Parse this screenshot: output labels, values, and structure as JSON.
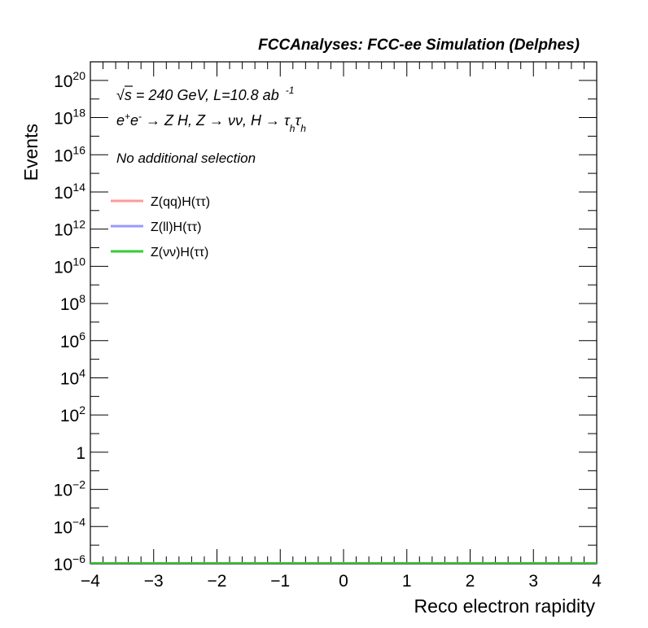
{
  "chart_data": {
    "type": "line",
    "title": "FCCAnalyses: FCC-ee Simulation (Delphes)",
    "xlabel": "Reco electron rapidity",
    "ylabel": "Events",
    "xlim": [
      -4,
      4
    ],
    "ylim_log10": [
      -6,
      21
    ],
    "yscale": "log",
    "x_ticks": [
      "−4",
      "−3",
      "−2",
      "−1",
      "0",
      "1",
      "2",
      "3",
      "4"
    ],
    "y_ticks": [
      {
        "exp": -6,
        "base": "10",
        "sup": "−6"
      },
      {
        "exp": -4,
        "base": "10",
        "sup": "−4"
      },
      {
        "exp": -2,
        "base": "10",
        "sup": "−2"
      },
      {
        "exp": 0,
        "base": "1",
        "sup": ""
      },
      {
        "exp": 2,
        "base": "10",
        "sup": "2"
      },
      {
        "exp": 4,
        "base": "10",
        "sup": "4"
      },
      {
        "exp": 6,
        "base": "10",
        "sup": "6"
      },
      {
        "exp": 8,
        "base": "10",
        "sup": "8"
      },
      {
        "exp": 10,
        "base": "10",
        "sup": "10"
      },
      {
        "exp": 12,
        "base": "10",
        "sup": "12"
      },
      {
        "exp": 14,
        "base": "10",
        "sup": "14"
      },
      {
        "exp": 16,
        "base": "10",
        "sup": "16"
      },
      {
        "exp": 18,
        "base": "10",
        "sup": "18"
      },
      {
        "exp": 20,
        "base": "10",
        "sup": "20"
      }
    ],
    "annotations": {
      "energy": {
        "sqrt": "√s",
        "rest": " = 240 GeV, L=10.8 ab",
        "sup": "-1"
      },
      "process": {
        "e": "e",
        "e_plus": "+",
        "e2": "e",
        "e_minus": "-",
        "mid": " → Z H, Z  → νν, H → ",
        "tau1": "τ",
        "sub1": "h",
        "tau2": "τ",
        "sub2": "h"
      },
      "selection": "No additional selection"
    },
    "legend_position": "top-left",
    "series": [
      {
        "name": "Z(qq)H(ττ)",
        "color": "#ff9999",
        "x": [
          -4,
          4
        ],
        "y": [
          0,
          0
        ]
      },
      {
        "name": "Z(ll)H(ττ)",
        "color": "#9999ff",
        "x": [
          -4,
          4
        ],
        "y": [
          0,
          0
        ]
      },
      {
        "name": "Z(νν)H(ττ)",
        "color": "#33cc33",
        "x": [
          -4,
          4
        ],
        "y": [
          0,
          0
        ]
      }
    ]
  }
}
